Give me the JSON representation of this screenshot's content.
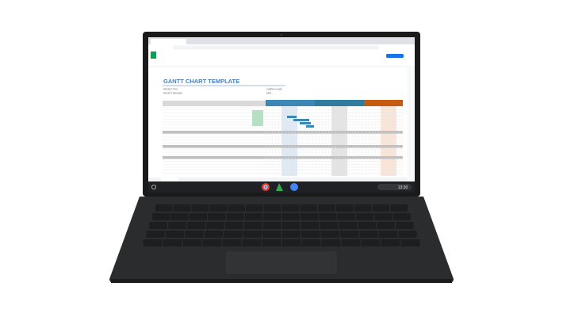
{
  "sheet": {
    "title": "GANTT CHART TEMPLATE",
    "fields": [
      "PROJECT TITLE",
      "PROJECT MANAGER",
      "COMPANY NAME",
      "DATE"
    ]
  },
  "shelf": {
    "time": "13:30"
  }
}
